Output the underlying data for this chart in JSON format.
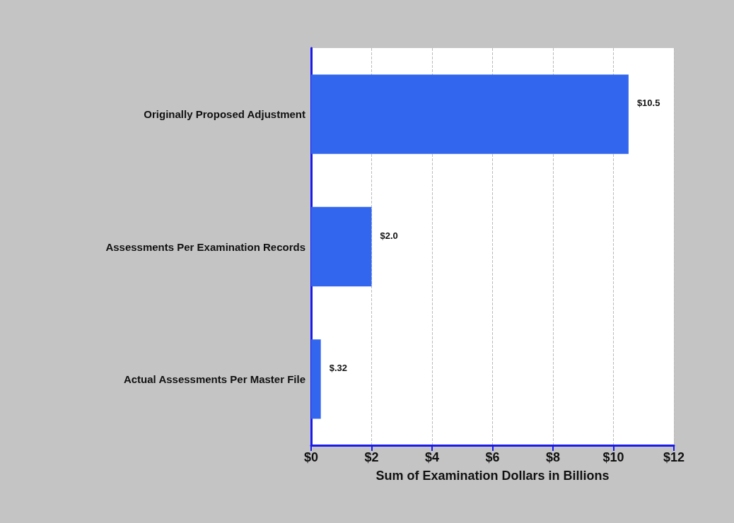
{
  "chart_data": {
    "type": "bar",
    "orientation": "horizontal",
    "xlabel": "Sum of Examination Dollars in Billions",
    "categories": [
      "Originally Proposed Adjustment",
      "Assessments Per Examination Records",
      "Actual Assessments Per Master File"
    ],
    "values": [
      10.5,
      2.0,
      0.32
    ],
    "value_labels": [
      "$10.5",
      "$2.0",
      "$.32"
    ],
    "color": "#3366ee",
    "xlim": [
      0,
      12
    ],
    "xticks": [
      {
        "value": 0,
        "label": "$0"
      },
      {
        "value": 2,
        "label": "$2"
      },
      {
        "value": 4,
        "label": "$4"
      },
      {
        "value": 6,
        "label": "$6"
      },
      {
        "value": 8,
        "label": "$8"
      },
      {
        "value": 10,
        "label": "$10"
      },
      {
        "value": 12,
        "label": "$12"
      }
    ],
    "grid": "x"
  }
}
